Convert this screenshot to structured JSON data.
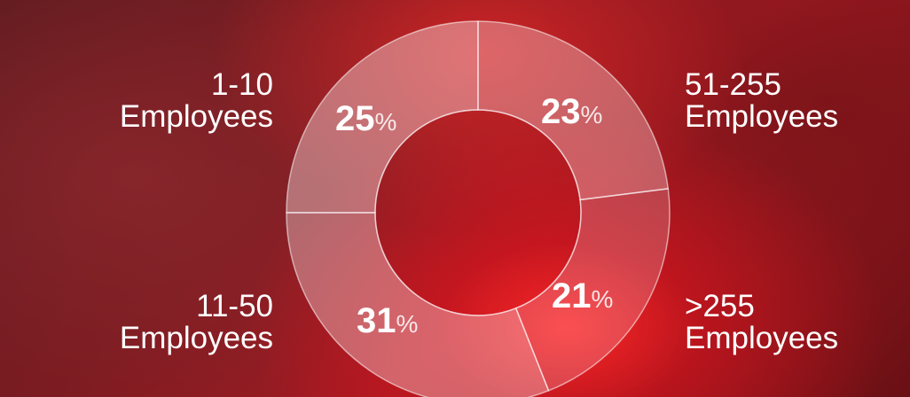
{
  "chart_data": {
    "type": "pie",
    "donut": true,
    "categories": [
      "1-10 Employees",
      "51-255 Employees",
      ">255 Employees",
      "11-50 Employees"
    ],
    "values": [
      25,
      23,
      21,
      31
    ],
    "unit": "%",
    "labels": [
      {
        "line1": "1-10",
        "line2": "Employees",
        "value": "25",
        "unit": "%"
      },
      {
        "line1": "51-255",
        "line2": "Employees",
        "value": "23",
        "unit": "%"
      },
      {
        "line1": ">255",
        "line2": "Employees",
        "value": "21",
        "unit": "%"
      },
      {
        "line1": "11-50",
        "line2": "Employees",
        "value": "31",
        "unit": "%"
      }
    ],
    "legend": "none",
    "grid": false
  }
}
